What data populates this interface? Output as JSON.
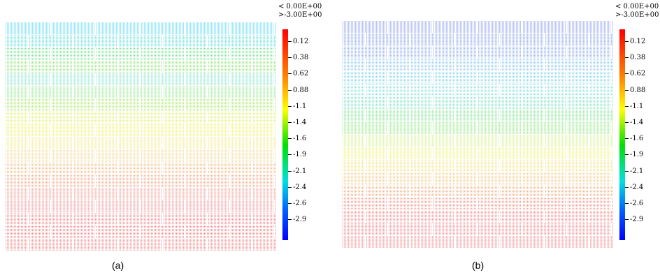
{
  "panels": [
    {
      "caption": "(a)",
      "legend_header": [
        "< 0.00E+00",
        ">-3.00E+00"
      ],
      "ticks": [
        "0.12",
        "0.38",
        "0.62",
        "0.88",
        "-1.1",
        "-1.4",
        "-1.6",
        "-1.9",
        "-2.1",
        "-2.4",
        "-2.6",
        "-2.9"
      ],
      "band_colors": [
        "#3fd2f0",
        "#58dcd8",
        "#7fe39b",
        "#94e57e",
        "#7ee0c8",
        "#8ee88a",
        "#a9ea66",
        "#e4f06a",
        "#eef260",
        "#f1e77c",
        "#f2d58a",
        "#f2c08c",
        "#f0aa8a",
        "#ef9a8e",
        "#ee8e8e",
        "#ef8a8a",
        "#ee8888",
        "#ee8686"
      ]
    },
    {
      "caption": "(b)",
      "legend_header": [
        "< 0.00E+00",
        ">-3.00E+00"
      ],
      "ticks": [
        "0.12",
        "0.38",
        "0.62",
        "0.88",
        "-1.1",
        "-1.4",
        "-1.6",
        "-1.9",
        "-2.1",
        "-2.4",
        "-2.6",
        "-2.9"
      ],
      "band_colors": [
        "#7a8fe8",
        "#7f9ae8",
        "#8aa8e8",
        "#8fc8ee",
        "#8ad6ee",
        "#8fe1df",
        "#7fe0c4",
        "#7fe48f",
        "#8ae67a",
        "#cfee7a",
        "#eef067",
        "#f1e080",
        "#f2cc8a",
        "#f0b68c",
        "#ef9e8e",
        "#ee908e",
        "#ee8888",
        "#ee8686"
      ]
    }
  ]
}
